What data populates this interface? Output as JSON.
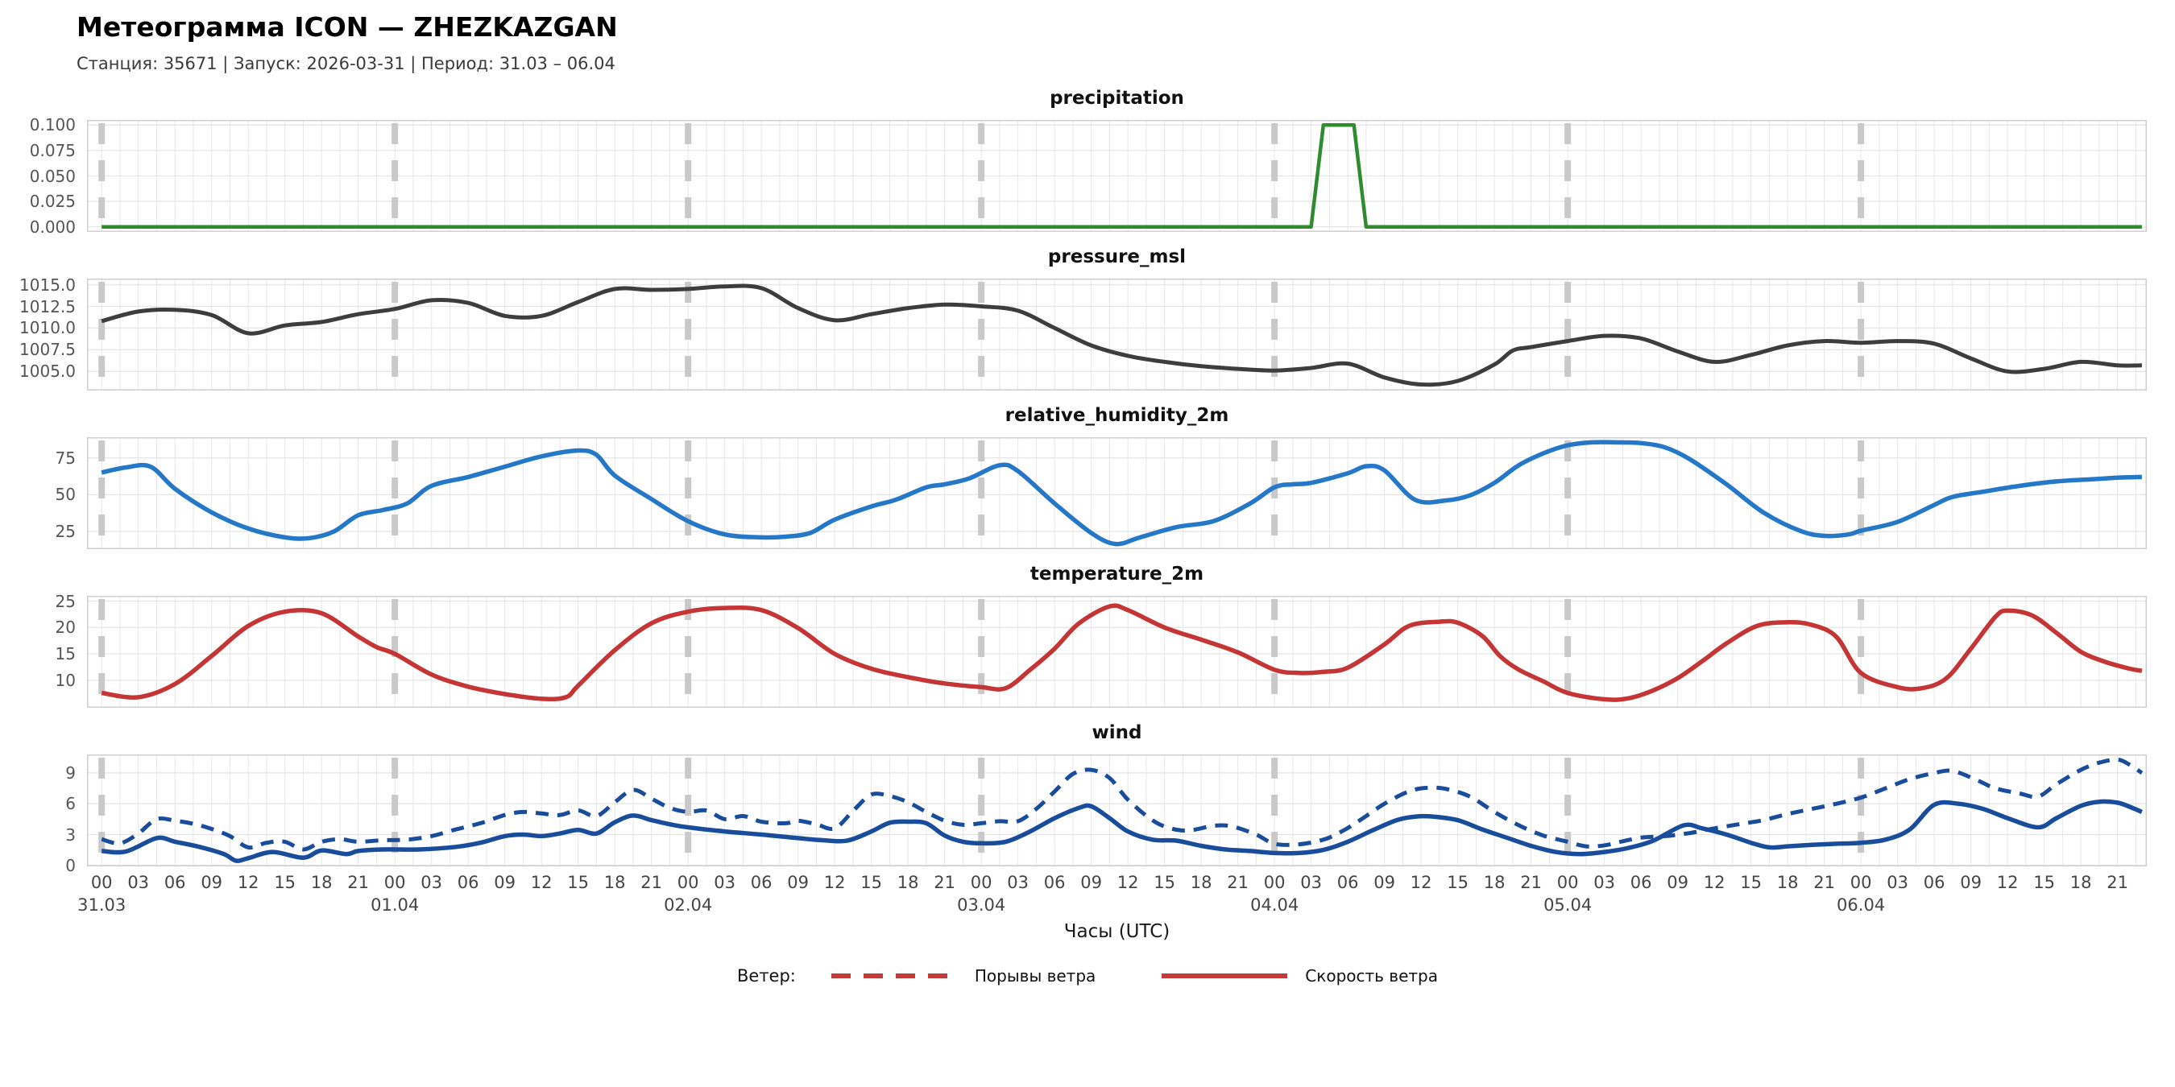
{
  "header": {
    "title": "Метеограмма ICON — ZHEZKAZGAN",
    "subtitle": "Станция: 35671  | Запуск: 2026-03-31  | Период: 31.03 – 06.04"
  },
  "axis": {
    "xlabel": "Часы (UTC)",
    "xlim": [
      -1.2,
      167.4
    ],
    "hour_tick_step": 3,
    "hour_tick_max": 165,
    "day_ticks": [
      {
        "hour": 0,
        "label": "31.03"
      },
      {
        "hour": 24,
        "label": "01.04"
      },
      {
        "hour": 48,
        "label": "02.04"
      },
      {
        "hour": 72,
        "label": "03.04"
      },
      {
        "hour": 96,
        "label": "04.04"
      },
      {
        "hour": 120,
        "label": "05.04"
      },
      {
        "hour": 144,
        "label": "06.04"
      }
    ]
  },
  "legend": {
    "title": "Ветер:",
    "color": "#c23b3b",
    "items": [
      {
        "label": "Порывы ветра",
        "style": "dashed"
      },
      {
        "label": "Скорость ветра",
        "style": "solid"
      }
    ]
  },
  "style_colors": {
    "grid": "#e6e6e6",
    "border": "#cfcfcf",
    "day_dash": "#c9c9c9",
    "tick_text": "#555555"
  },
  "chart_data": [
    {
      "name": "precipitation",
      "type": "line",
      "color": "#2e8b2e",
      "line_width": 4.5,
      "smooth": false,
      "ylim": [
        -0.005,
        0.105
      ],
      "yticks": [
        0,
        0.025,
        0.05,
        0.075,
        0.1
      ],
      "ytick_labels": [
        "0.000",
        "0.025",
        "0.050",
        "0.075",
        "0.100"
      ],
      "x": [
        0,
        99,
        100,
        102.5,
        103.5,
        167
      ],
      "y": [
        0,
        0,
        0.1,
        0.1,
        0,
        0
      ]
    },
    {
      "name": "pressure_msl",
      "type": "line",
      "color": "#3d3d3d",
      "line_width": 5,
      "smooth": true,
      "ylim": [
        1002.8,
        1015.7
      ],
      "yticks": [
        1005.0,
        1007.5,
        1010.0,
        1012.5,
        1015.0
      ],
      "ytick_labels": [
        "1005.0",
        "1007.5",
        "1010.0",
        "1012.5",
        "1015.0"
      ],
      "x": [
        0,
        3,
        6,
        9,
        12,
        15,
        18,
        21,
        24,
        27,
        30,
        33,
        36,
        39,
        42,
        45,
        48,
        51,
        54,
        57,
        60,
        63,
        66,
        69,
        72,
        75,
        78,
        81,
        84,
        87,
        90,
        93,
        96,
        99,
        102,
        105,
        108,
        111,
        114,
        115.5,
        117,
        120,
        123,
        126,
        129,
        132,
        135,
        138,
        141,
        144,
        147,
        150,
        153,
        156,
        159,
        162,
        165,
        167
      ],
      "y": [
        1010.8,
        1011.9,
        1012.1,
        1011.5,
        1009.4,
        1010.3,
        1010.7,
        1011.6,
        1012.2,
        1013.2,
        1012.9,
        1011.4,
        1011.4,
        1013.0,
        1014.5,
        1014.4,
        1014.5,
        1014.8,
        1014.6,
        1012.3,
        1010.9,
        1011.6,
        1012.3,
        1012.7,
        1012.5,
        1012.0,
        1010.0,
        1008.0,
        1006.8,
        1006.1,
        1005.6,
        1005.3,
        1005.1,
        1005.4,
        1005.9,
        1004.3,
        1003.5,
        1003.9,
        1005.8,
        1007.4,
        1007.8,
        1008.5,
        1009.1,
        1008.8,
        1007.3,
        1006.1,
        1006.9,
        1008.0,
        1008.5,
        1008.3,
        1008.5,
        1008.2,
        1006.5,
        1005.0,
        1005.3,
        1006.1,
        1005.7,
        1005.7
      ]
    },
    {
      "name": "relative_humidity_2m",
      "type": "line",
      "color": "#2577c8",
      "line_width": 5.5,
      "smooth": true,
      "ylim": [
        13,
        89
      ],
      "yticks": [
        25,
        50,
        75
      ],
      "ytick_labels": [
        "25",
        "50",
        "75"
      ],
      "x": [
        0,
        2,
        4,
        6,
        9,
        12,
        15,
        17,
        19,
        21,
        23,
        25,
        27,
        30,
        33,
        36,
        39,
        40.5,
        42,
        45,
        48,
        51,
        54,
        56,
        58,
        60,
        63,
        65,
        67.5,
        69,
        71,
        73.5,
        75,
        78,
        81,
        83,
        85,
        88,
        91,
        94,
        96,
        97.5,
        99,
        102,
        103.5,
        105,
        107.5,
        110,
        112,
        114,
        116,
        118,
        120,
        122,
        124,
        126,
        128,
        130,
        133,
        136,
        139,
        141,
        143,
        144,
        147,
        150,
        151.5,
        154,
        157,
        160,
        163,
        165,
        167
      ],
      "y": [
        65,
        68.5,
        69,
        54,
        38,
        27,
        21,
        20.5,
        25,
        36,
        39.5,
        44,
        56,
        62,
        69,
        76,
        80,
        77,
        63,
        47,
        32,
        23,
        21,
        21.5,
        24,
        33,
        42,
        46.5,
        55,
        57,
        61,
        70,
        66,
        44,
        24,
        16.5,
        21,
        28,
        32,
        44,
        55,
        57,
        58,
        64.5,
        69.3,
        66.5,
        46.5,
        46,
        49.5,
        58,
        70,
        78,
        83.5,
        85.5,
        85.5,
        85,
        82,
        74,
        57,
        38,
        25.5,
        22,
        23,
        25.5,
        31.5,
        43,
        48.5,
        52,
        56,
        59,
        60.5,
        61.5,
        62
      ]
    },
    {
      "name": "temperature_2m",
      "type": "line",
      "color": "#c63535",
      "line_width": 5.5,
      "smooth": true,
      "ylim": [
        4.8,
        26.0
      ],
      "yticks": [
        10,
        15,
        20,
        25
      ],
      "ytick_labels": [
        "10",
        "15",
        "20",
        "25"
      ],
      "x": [
        0,
        3,
        6,
        9,
        12,
        15,
        18,
        21,
        22.5,
        24,
        27,
        30,
        33,
        36,
        38,
        39,
        42,
        45,
        48,
        51,
        54,
        57,
        60,
        63,
        66,
        69,
        72,
        74,
        76,
        78,
        80,
        82.5,
        84,
        87,
        90,
        93,
        96,
        98,
        100,
        102,
        105,
        107,
        109.5,
        111,
        113,
        114.5,
        116,
        118,
        120,
        123,
        125,
        127,
        129,
        131,
        133,
        135.5,
        138,
        140,
        142,
        144,
        147,
        149,
        151,
        153,
        155,
        156,
        158,
        160,
        162,
        164,
        166,
        167
      ],
      "y": [
        7.6,
        6.8,
        9.3,
        14.6,
        20.3,
        23.0,
        22.7,
        18.3,
        16.3,
        15.0,
        11.1,
        8.8,
        7.4,
        6.5,
        6.8,
        9.0,
        15.7,
        20.8,
        23.0,
        23.7,
        23.3,
        19.9,
        15.0,
        12.2,
        10.6,
        9.4,
        8.7,
        8.5,
        12.0,
        16.0,
        20.8,
        24.0,
        23.3,
        20.0,
        17.7,
        15.3,
        12.0,
        11.4,
        11.6,
        12.4,
        16.8,
        20.3,
        21.1,
        20.9,
        18.4,
        14.5,
        12.0,
        9.8,
        7.6,
        6.4,
        6.6,
        8.1,
        10.4,
        13.6,
        17.0,
        20.3,
        21.0,
        20.5,
        18.2,
        11.4,
        8.7,
        8.5,
        10.4,
        16.0,
        22.0,
        23.2,
        22.3,
        19.0,
        15.4,
        13.5,
        12.2,
        11.8
      ]
    },
    {
      "name": "wind",
      "type": "line",
      "ylim": [
        -0.1,
        10.8
      ],
      "yticks": [
        0,
        3,
        6,
        9
      ],
      "ytick_labels": [
        "0",
        "3",
        "6",
        "9"
      ],
      "series": [
        {
          "label": "Скорость ветра",
          "style": "solid",
          "color": "#1a4c9c",
          "line_width": 5.5,
          "smooth": true,
          "x": [
            0,
            2,
            4.5,
            6,
            8,
            10,
            11,
            12,
            14,
            16.5,
            18,
            20,
            21,
            23,
            26,
            29,
            31,
            33,
            34.5,
            36,
            37.5,
            39,
            40.5,
            42,
            43.5,
            45,
            46.5,
            48,
            51,
            54,
            57,
            59,
            61,
            63,
            64.5,
            66,
            67.5,
            69,
            70.5,
            72,
            74,
            76,
            78,
            80,
            81,
            82.5,
            84,
            86,
            88,
            90,
            92,
            94,
            96,
            98,
            100,
            102,
            104,
            106,
            107.5,
            109,
            111,
            113,
            115,
            117,
            119,
            121,
            123,
            125,
            127,
            129.5,
            131,
            133,
            135,
            136.5,
            138,
            140,
            142,
            144,
            146,
            148,
            150,
            152,
            154,
            156,
            158.5,
            160,
            162,
            163.5,
            165,
            166,
            167
          ],
          "y": [
            1.4,
            1.35,
            2.65,
            2.3,
            1.8,
            1.1,
            0.45,
            0.7,
            1.3,
            0.75,
            1.45,
            1.1,
            1.4,
            1.55,
            1.55,
            1.8,
            2.2,
            2.85,
            3.0,
            2.85,
            3.1,
            3.45,
            3.1,
            4.2,
            4.85,
            4.4,
            4.0,
            3.7,
            3.3,
            3.0,
            2.65,
            2.45,
            2.4,
            3.3,
            4.15,
            4.25,
            4.1,
            2.9,
            2.3,
            2.15,
            2.3,
            3.3,
            4.6,
            5.6,
            5.75,
            4.6,
            3.3,
            2.5,
            2.4,
            1.9,
            1.55,
            1.4,
            1.2,
            1.2,
            1.5,
            2.3,
            3.4,
            4.4,
            4.75,
            4.75,
            4.4,
            3.5,
            2.7,
            1.9,
            1.3,
            1.1,
            1.3,
            1.7,
            2.4,
            3.9,
            3.6,
            3.0,
            2.2,
            1.75,
            1.85,
            2.0,
            2.1,
            2.2,
            2.5,
            3.5,
            5.9,
            6.0,
            5.5,
            4.6,
            3.7,
            4.6,
            5.8,
            6.2,
            6.1,
            5.7,
            5.2
          ]
        },
        {
          "label": "Порывы ветра",
          "style": "dashed",
          "color": "#1a4c9c",
          "line_width": 5,
          "smooth": true,
          "x": [
            0,
            1.5,
            3,
            4.5,
            6,
            7.5,
            9,
            10.5,
            12,
            13.5,
            15,
            16.5,
            18,
            19.5,
            21,
            23,
            25,
            27,
            29,
            31,
            33,
            34.5,
            36,
            37.5,
            39,
            40.5,
            42,
            43.5,
            45,
            46.5,
            48,
            49.5,
            51,
            52.5,
            54,
            56,
            57,
            58.5,
            60,
            61.5,
            63,
            64.5,
            66,
            67.5,
            69,
            70.5,
            72,
            73.5,
            75,
            76.5,
            78,
            79.5,
            81,
            82.5,
            84,
            86,
            87.5,
            89,
            91,
            92.5,
            94.5,
            96,
            98,
            100,
            101.5,
            103,
            105,
            107,
            108.5,
            110,
            112,
            114,
            116,
            118,
            120,
            121.5,
            123,
            124.5,
            126,
            128,
            130,
            132,
            134,
            136,
            138,
            140,
            142,
            144,
            146,
            148,
            150,
            151.5,
            153.5,
            155,
            157,
            158.5,
            160,
            162,
            163.5,
            165,
            166,
            167
          ],
          "y": [
            2.55,
            2.15,
            3.1,
            4.5,
            4.35,
            4.05,
            3.55,
            2.85,
            1.75,
            2.2,
            2.3,
            1.55,
            2.3,
            2.55,
            2.3,
            2.45,
            2.5,
            2.85,
            3.5,
            4.1,
            4.9,
            5.2,
            5.05,
            4.9,
            5.35,
            4.8,
            6.15,
            7.35,
            6.5,
            5.6,
            5.2,
            5.35,
            4.5,
            4.8,
            4.25,
            4.1,
            4.35,
            4.0,
            3.6,
            5.3,
            6.9,
            6.75,
            6.15,
            5.2,
            4.35,
            3.95,
            4.1,
            4.3,
            4.3,
            5.5,
            7.2,
            8.9,
            9.3,
            8.5,
            6.4,
            4.4,
            3.6,
            3.4,
            3.85,
            3.8,
            3.0,
            2.1,
            2.05,
            2.5,
            3.3,
            4.4,
            6.0,
            7.2,
            7.55,
            7.45,
            6.7,
            5.2,
            3.9,
            2.9,
            2.3,
            1.85,
            1.95,
            2.35,
            2.7,
            2.85,
            3.15,
            3.6,
            4.0,
            4.4,
            5.0,
            5.5,
            6.0,
            6.6,
            7.5,
            8.4,
            9.0,
            9.2,
            8.3,
            7.5,
            7.0,
            6.7,
            7.9,
            9.3,
            10.0,
            10.3,
            9.8,
            9.0
          ]
        }
      ]
    }
  ]
}
